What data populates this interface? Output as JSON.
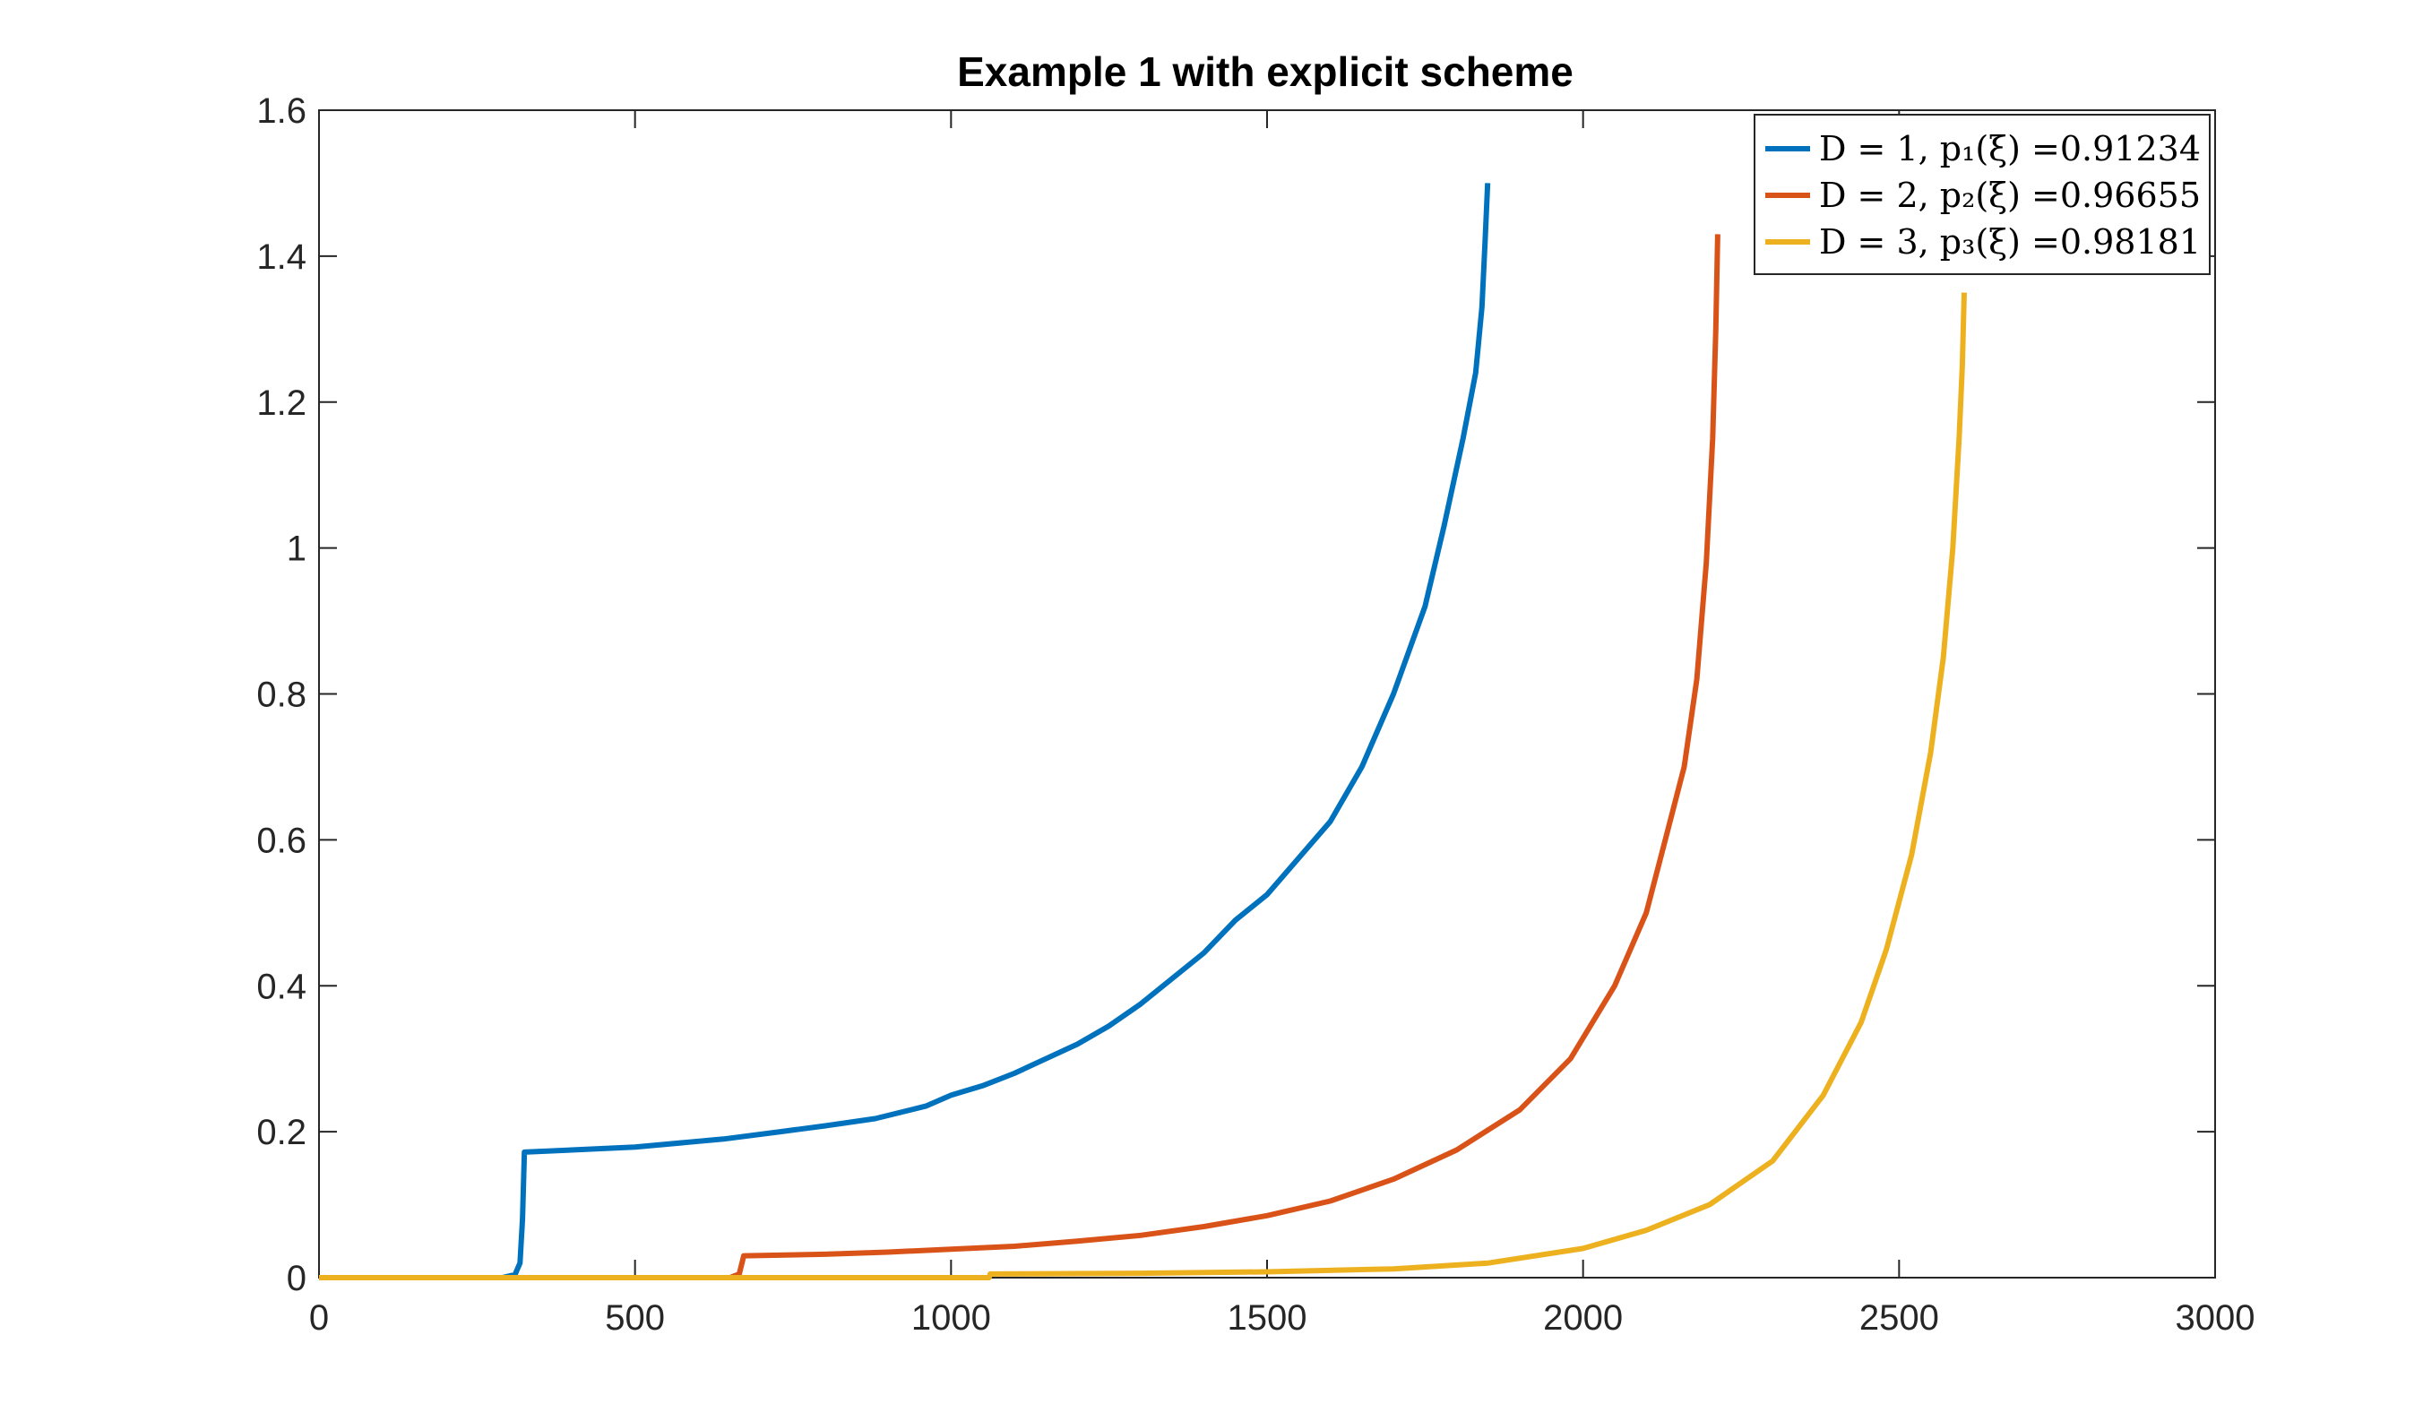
{
  "chart_data": {
    "type": "line",
    "title": "Example 1 with explicit scheme",
    "xlabel": "",
    "ylabel": "",
    "xlim": [
      0,
      3000
    ],
    "ylim": [
      0,
      1.6
    ],
    "xticks": [
      0,
      500,
      1000,
      1500,
      2000,
      2500,
      3000
    ],
    "yticks": [
      0,
      0.2,
      0.4,
      0.6,
      0.8,
      1,
      1.2,
      1.4,
      1.6
    ],
    "xtick_labels": [
      "0",
      "500",
      "1000",
      "1500",
      "2000",
      "2500",
      "3000"
    ],
    "ytick_labels": [
      "0",
      "0.2",
      "0.4",
      "0.6",
      "0.8",
      "1",
      "1.2",
      "1.4",
      "1.6"
    ],
    "grid": false,
    "legend_position": "top-right",
    "series": [
      {
        "name": "D = 1, p₁(ξ) =0.91234",
        "color": "#0072BD",
        "points": [
          [
            0,
            0
          ],
          [
            290,
            0
          ],
          [
            310,
            0.004
          ],
          [
            318,
            0.02
          ],
          [
            322,
            0.08
          ],
          [
            325,
            0.172
          ],
          [
            400,
            0.175
          ],
          [
            500,
            0.179
          ],
          [
            640,
            0.19
          ],
          [
            730,
            0.2
          ],
          [
            800,
            0.208
          ],
          [
            880,
            0.218
          ],
          [
            960,
            0.235
          ],
          [
            1000,
            0.25
          ],
          [
            1050,
            0.263
          ],
          [
            1100,
            0.28
          ],
          [
            1150,
            0.3
          ],
          [
            1200,
            0.32
          ],
          [
            1250,
            0.345
          ],
          [
            1300,
            0.375
          ],
          [
            1350,
            0.41
          ],
          [
            1400,
            0.445
          ],
          [
            1450,
            0.49
          ],
          [
            1500,
            0.525
          ],
          [
            1550,
            0.575
          ],
          [
            1600,
            0.625
          ],
          [
            1650,
            0.7
          ],
          [
            1700,
            0.8
          ],
          [
            1750,
            0.92
          ],
          [
            1780,
            1.03
          ],
          [
            1810,
            1.15
          ],
          [
            1830,
            1.24
          ],
          [
            1840,
            1.33
          ],
          [
            1845,
            1.42
          ],
          [
            1849,
            1.5
          ]
        ]
      },
      {
        "name": "D = 2, p₂(ξ) =0.96655",
        "color": "#D95319",
        "points": [
          [
            0,
            0
          ],
          [
            650,
            0
          ],
          [
            665,
            0.005
          ],
          [
            672,
            0.03
          ],
          [
            800,
            0.032
          ],
          [
            900,
            0.035
          ],
          [
            1000,
            0.039
          ],
          [
            1100,
            0.043
          ],
          [
            1200,
            0.05
          ],
          [
            1300,
            0.058
          ],
          [
            1400,
            0.07
          ],
          [
            1500,
            0.085
          ],
          [
            1600,
            0.105
          ],
          [
            1700,
            0.135
          ],
          [
            1800,
            0.175
          ],
          [
            1900,
            0.23
          ],
          [
            1980,
            0.3
          ],
          [
            2050,
            0.4
          ],
          [
            2100,
            0.5
          ],
          [
            2130,
            0.6
          ],
          [
            2160,
            0.7
          ],
          [
            2180,
            0.82
          ],
          [
            2195,
            0.98
          ],
          [
            2205,
            1.15
          ],
          [
            2210,
            1.3
          ],
          [
            2213,
            1.43
          ]
        ]
      },
      {
        "name": "D = 3, p₃(ξ) =0.98181",
        "color": "#EDB120",
        "points": [
          [
            0,
            0
          ],
          [
            1060,
            0
          ],
          [
            1062,
            0.005
          ],
          [
            1300,
            0.006
          ],
          [
            1500,
            0.008
          ],
          [
            1700,
            0.012
          ],
          [
            1850,
            0.02
          ],
          [
            2000,
            0.04
          ],
          [
            2100,
            0.065
          ],
          [
            2200,
            0.1
          ],
          [
            2300,
            0.16
          ],
          [
            2380,
            0.25
          ],
          [
            2440,
            0.35
          ],
          [
            2480,
            0.45
          ],
          [
            2520,
            0.58
          ],
          [
            2550,
            0.72
          ],
          [
            2570,
            0.85
          ],
          [
            2585,
            1.0
          ],
          [
            2595,
            1.15
          ],
          [
            2600,
            1.25
          ],
          [
            2603,
            1.35
          ]
        ]
      }
    ]
  }
}
